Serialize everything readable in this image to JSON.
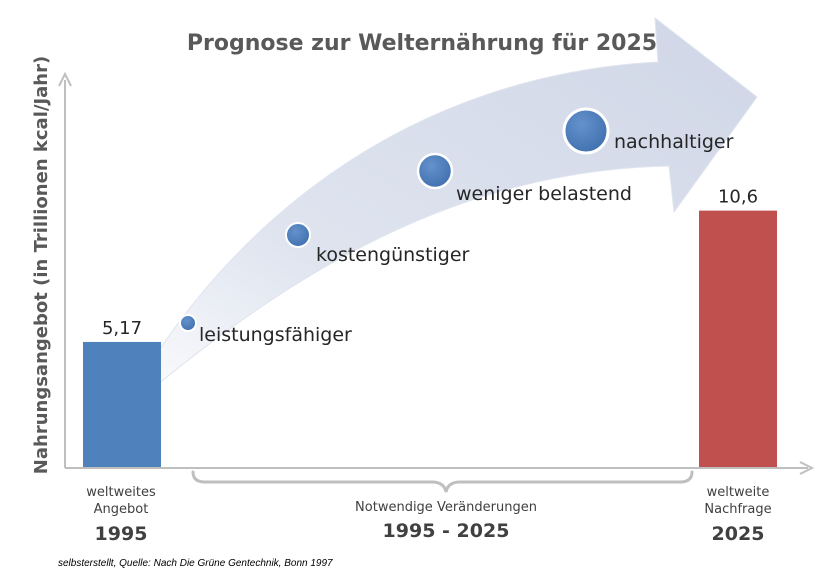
{
  "chart_data": {
    "type": "bar",
    "title": "Prognose zur Welternährung für 2025",
    "ylabel": "Nahrungsangebot (in Trillionen kcal/Jahr)",
    "categories": [
      {
        "label_lines": [
          "weltweites",
          "Angebot"
        ],
        "year": "1995"
      },
      {
        "label_lines": [
          "weltweite",
          "Nachfrage"
        ],
        "year": "2025"
      }
    ],
    "values": [
      5.17,
      10.6
    ],
    "value_labels": [
      "5,17",
      "10,6"
    ],
    "colors": [
      "#4f81bd",
      "#c0504d"
    ],
    "ylim": [
      0,
      16
    ],
    "grid": false,
    "legend": "none",
    "arrow_steps": [
      {
        "label": "leistungsfähiger",
        "size_rank": 1
      },
      {
        "label": "kostengünstiger",
        "size_rank": 2
      },
      {
        "label": "weniger belastend",
        "size_rank": 3
      },
      {
        "label": "nachhaltiger",
        "size_rank": 4
      }
    ],
    "brace": {
      "lines": [
        "Notwendige Veränderungen"
      ],
      "period": "1995 - 2025"
    }
  },
  "source": "selbsterstellt, Quelle: Nach Die Grüne Gentechnik, Bonn  1997",
  "colors": {
    "arrow": "#d4dbea",
    "dot": "#4f81bd",
    "axis": "#bfbfbf",
    "brace": "#bfbfbf"
  }
}
